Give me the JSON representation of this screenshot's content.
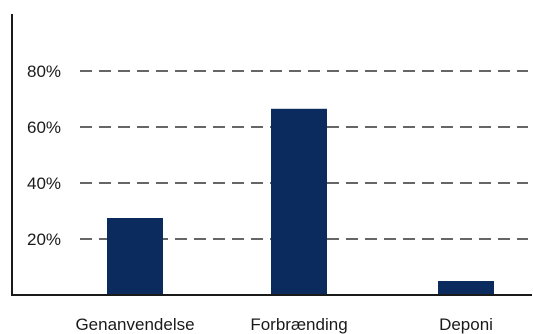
{
  "chart_data": {
    "type": "bar",
    "categories": [
      "Genanvendelse",
      "Forbrænding",
      "Deponi"
    ],
    "values": [
      27.5,
      66.5,
      5
    ],
    "ylim": [
      0,
      100
    ],
    "yticks": [
      20,
      40,
      60,
      80
    ],
    "ytick_labels": [
      "20%",
      "40%",
      "60%",
      "80%"
    ],
    "grid": "dashed-horizontal",
    "bar_color": "#0b2a5e",
    "axis_color": "#1a1a1a",
    "grid_color": "#333333"
  }
}
